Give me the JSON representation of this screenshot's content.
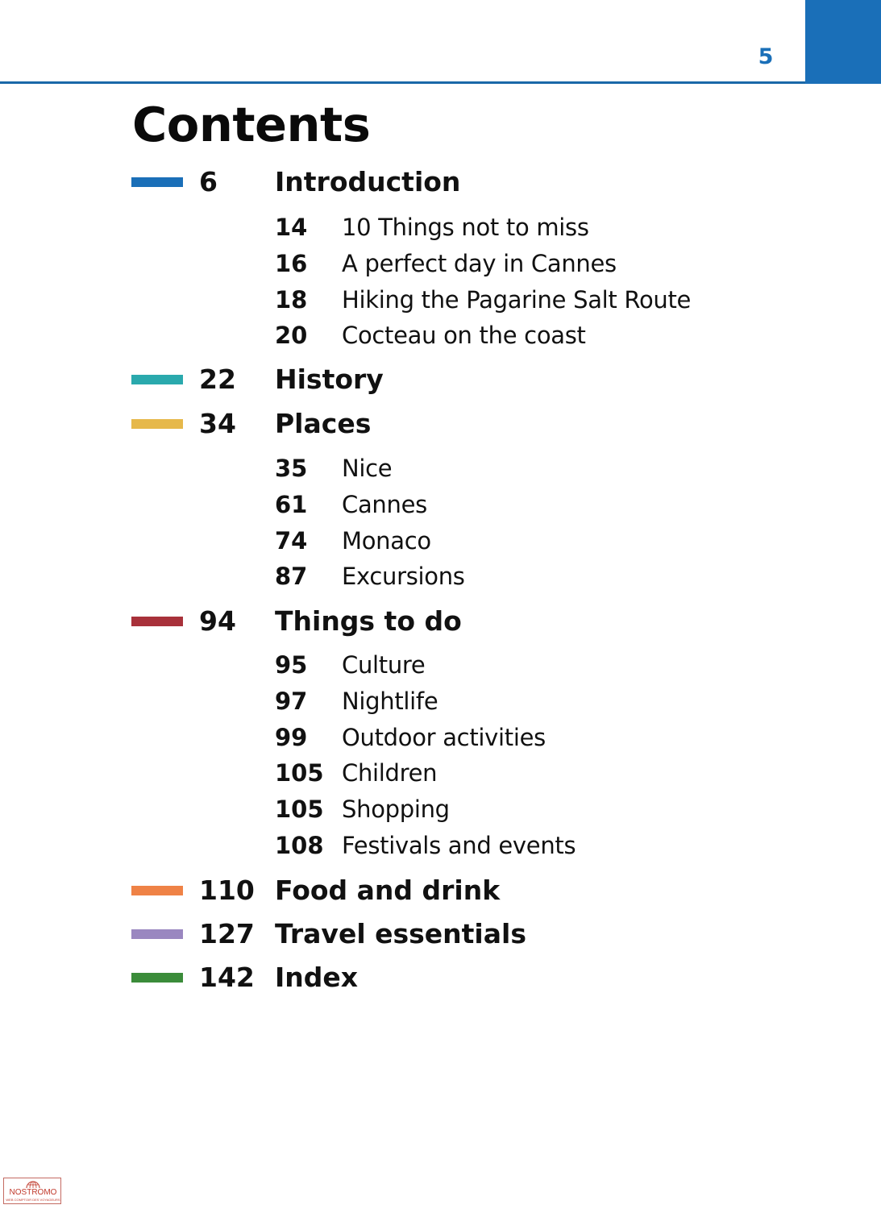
{
  "page": {
    "number": "5",
    "accent_color": "#1a6fb8"
  },
  "title": "Contents",
  "sections": [
    {
      "page": "6",
      "title": "Introduction",
      "color": "#1a6fb8",
      "entries": [
        {
          "page": "14",
          "title": "10 Things not to miss"
        },
        {
          "page": "16",
          "title": "A perfect day in Cannes"
        },
        {
          "page": "18",
          "title": "Hiking the Pagarine Salt Route"
        },
        {
          "page": "20",
          "title": "Cocteau on the coast"
        }
      ]
    },
    {
      "page": "22",
      "title": "History",
      "color": "#2aa9ad",
      "entries": []
    },
    {
      "page": "34",
      "title": "Places",
      "color": "#e6b84a",
      "entries": [
        {
          "page": "35",
          "title": "Nice"
        },
        {
          "page": "61",
          "title": "Cannes"
        },
        {
          "page": "74",
          "title": "Monaco"
        },
        {
          "page": "87",
          "title": "Excursions"
        }
      ]
    },
    {
      "page": "94",
      "title": "Things to do",
      "color": "#a8313a",
      "entries": [
        {
          "page": "95",
          "title": "Culture"
        },
        {
          "page": "97",
          "title": "Nightlife"
        },
        {
          "page": "99",
          "title": "Outdoor activities"
        },
        {
          "page": "105",
          "title": "Children"
        },
        {
          "page": "105",
          "title": "Shopping"
        },
        {
          "page": "108",
          "title": "Festivals and events"
        }
      ]
    },
    {
      "page": "110",
      "title": "Food and drink",
      "color": "#ef8246",
      "entries": []
    },
    {
      "page": "127",
      "title": "Travel essentials",
      "color": "#9a87c0",
      "entries": []
    },
    {
      "page": "142",
      "title": "Index",
      "color": "#3b8c3a",
      "entries": []
    }
  ],
  "watermark": {
    "name": "NOSTROMO",
    "tagline": "WEB COMPTOIR DES VOYAGEURS",
    "color": "#c0392b"
  }
}
